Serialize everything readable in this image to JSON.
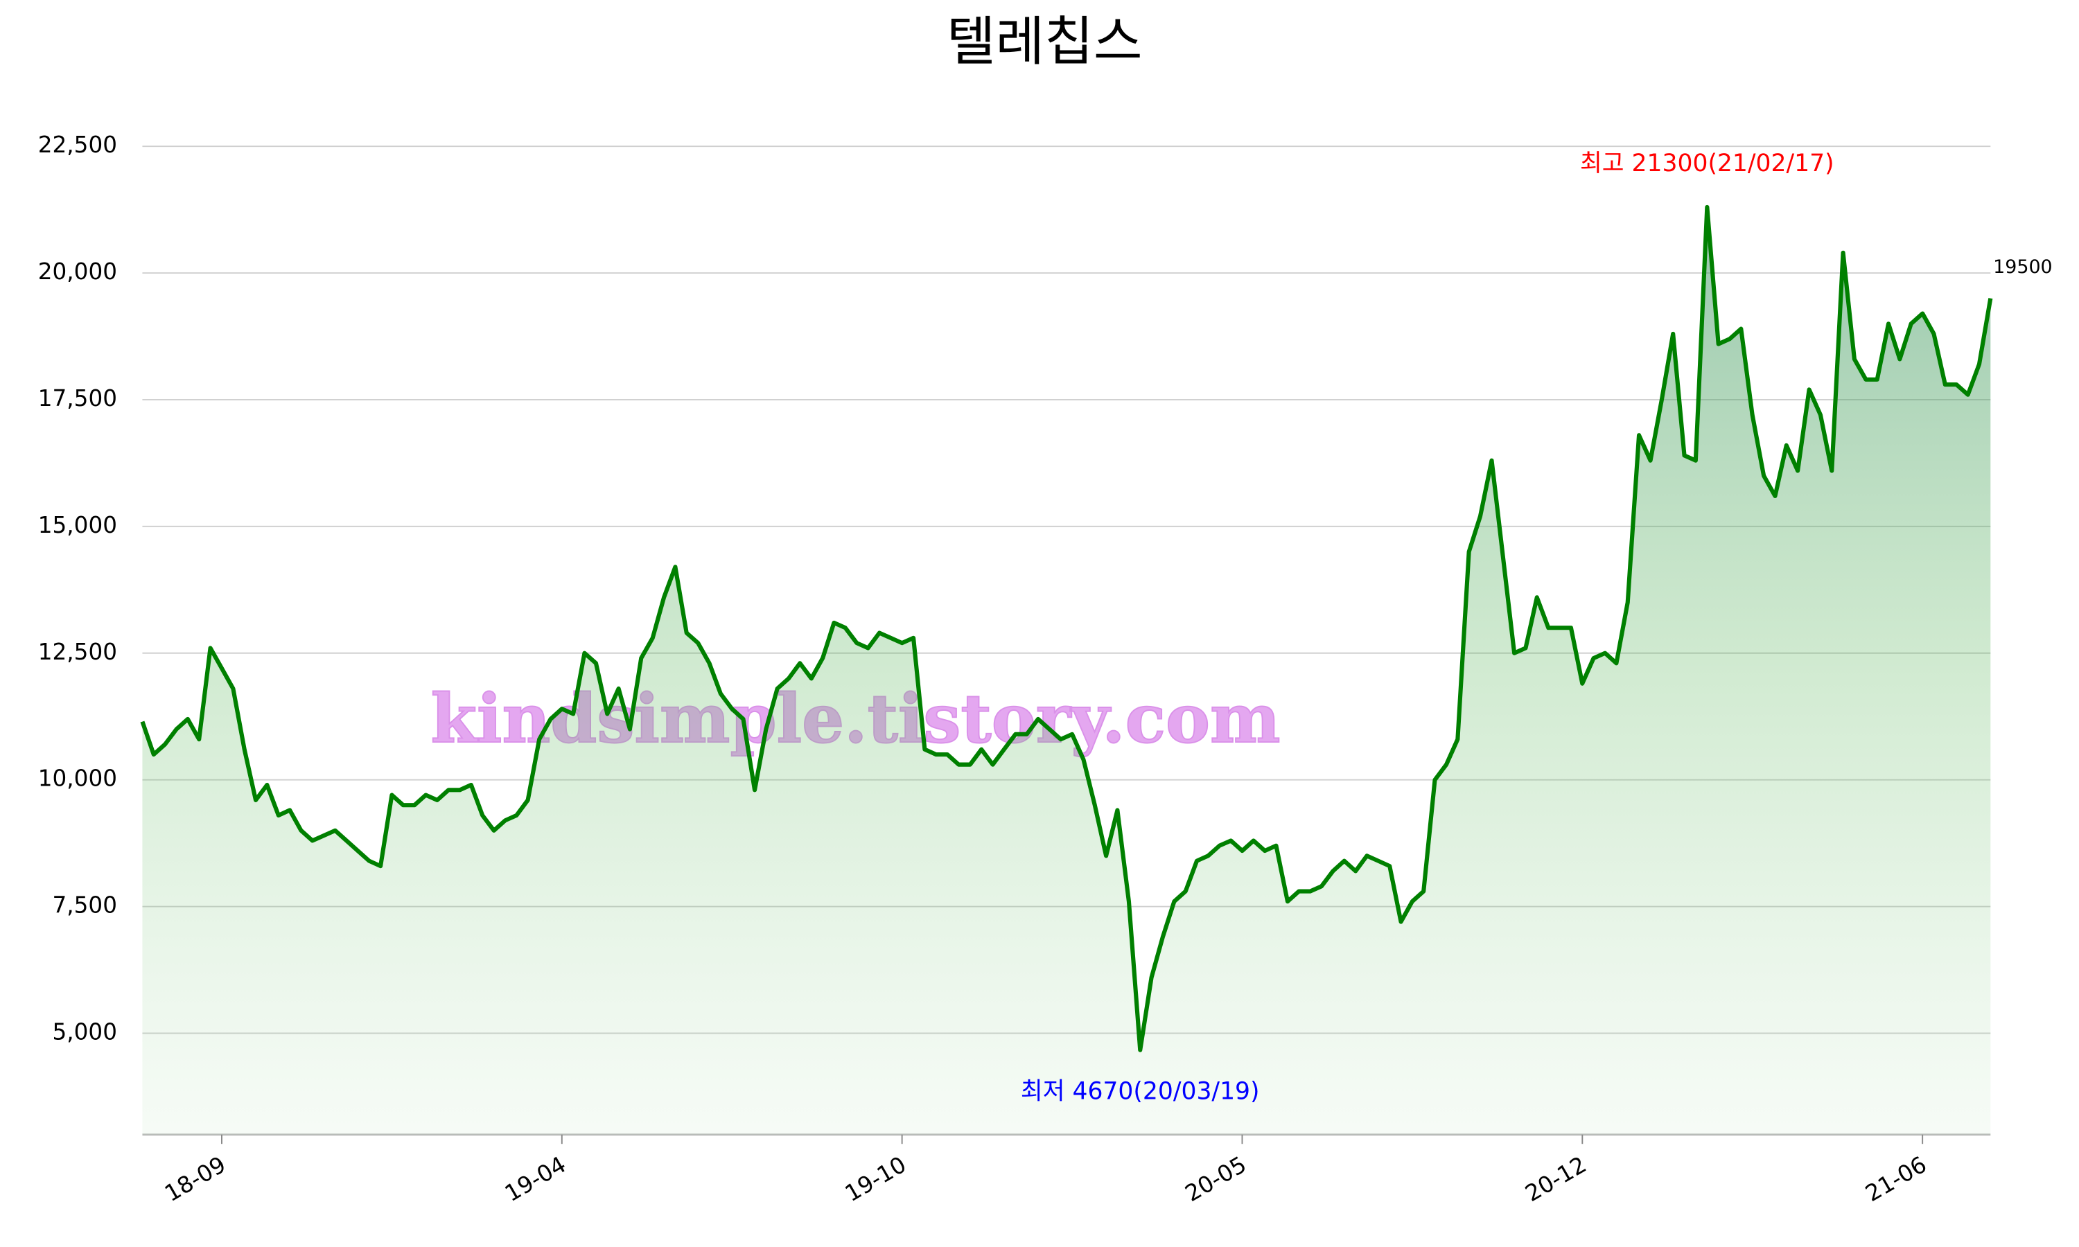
{
  "chart_data": {
    "type": "line",
    "title": "텔레칩스",
    "categories": [
      null,
      null,
      null,
      null,
      null,
      null,
      null,
      "18-09",
      null,
      null,
      null,
      null,
      null,
      null,
      null,
      null,
      null,
      null,
      null,
      null,
      null,
      null,
      null,
      null,
      null,
      null,
      null,
      null,
      null,
      null,
      null,
      null,
      null,
      null,
      null,
      null,
      null,
      "19-04",
      null,
      null,
      null,
      null,
      null,
      null,
      null,
      null,
      null,
      null,
      null,
      null,
      null,
      null,
      null,
      null,
      null,
      null,
      null,
      null,
      null,
      null,
      null,
      null,
      null,
      null,
      null,
      null,
      null,
      "19-10",
      null,
      null,
      null,
      null,
      null,
      null,
      null,
      null,
      null,
      null,
      null,
      null,
      null,
      null,
      null,
      null,
      null,
      null,
      null,
      null,
      null,
      null,
      null,
      null,
      null,
      null,
      null,
      null,
      null,
      "20-05",
      null,
      null,
      null,
      null,
      null,
      null,
      null,
      null,
      null,
      null,
      null,
      null,
      null,
      null,
      null,
      null,
      null,
      null,
      null,
      null,
      null,
      null,
      null,
      null,
      null,
      null,
      null,
      null,
      null,
      "20-12",
      null,
      null,
      null,
      null,
      null,
      null,
      null,
      null,
      null,
      null,
      null,
      null,
      null,
      null,
      null,
      null,
      null,
      null,
      null,
      null,
      null,
      null,
      null,
      null,
      null,
      null,
      null,
      null,
      null,
      "21-06",
      null,
      null,
      null,
      null,
      null,
      null
    ],
    "series": [
      {
        "name": "텔레칩스",
        "color": "#008000",
        "values": [
          11150,
          10500,
          10700,
          11000,
          11200,
          10800,
          12600,
          12200,
          11800,
          10600,
          9600,
          9900,
          9300,
          9400,
          9000,
          8800,
          8900,
          9000,
          8800,
          8600,
          8400,
          8300,
          9700,
          9500,
          9500,
          9700,
          9600,
          9800,
          9800,
          9900,
          9300,
          9000,
          9200,
          9300,
          9600,
          10800,
          11200,
          11400,
          11300,
          12500,
          12300,
          11300,
          11800,
          11000,
          12400,
          12800,
          13600,
          14200,
          12900,
          12700,
          12300,
          11700,
          11400,
          11200,
          9800,
          11000,
          11800,
          12000,
          12300,
          12000,
          12400,
          13100,
          13000,
          12700,
          12600,
          12900,
          12800,
          12700,
          12800,
          10600,
          10500,
          10500,
          10300,
          10300,
          10600,
          10300,
          10600,
          10900,
          10900,
          11200,
          11000,
          10800,
          10900,
          10400,
          9500,
          8500,
          9400,
          7600,
          4670,
          6100,
          6900,
          7600,
          7800,
          8400,
          8500,
          8700,
          8800,
          8600,
          8800,
          8600,
          8700,
          7600,
          7800,
          7800,
          7900,
          8200,
          8400,
          8200,
          8500,
          8400,
          8300,
          7200,
          7600,
          7800,
          10000,
          10300,
          10800,
          14500,
          15200,
          16300,
          14400,
          12500,
          12600,
          13600,
          13000,
          13000,
          13000,
          11900,
          12400,
          12500,
          12300,
          13500,
          16800,
          16300,
          17500,
          18800,
          16400,
          16300,
          21300,
          18600,
          18700,
          18900,
          17200,
          16000,
          15600,
          16600,
          16100,
          17700,
          17200,
          16100,
          20400,
          18300,
          17900,
          17900,
          19000,
          18300,
          19000,
          19200,
          18800,
          17800,
          17800,
          17600,
          18200,
          19500
        ]
      }
    ],
    "ylim": [
      3000,
      23000
    ],
    "yticks": [
      {
        "value": 5000,
        "label": "5,000"
      },
      {
        "value": 7500,
        "label": "7,500"
      },
      {
        "value": 10000,
        "label": "10,000"
      },
      {
        "value": 12500,
        "label": "12,500"
      },
      {
        "value": 15000,
        "label": "15,000"
      },
      {
        "value": 17500,
        "label": "17,500"
      },
      {
        "value": 20000,
        "label": "20,000"
      },
      {
        "value": 22500,
        "label": "22,500"
      }
    ],
    "grid": true,
    "annotations": [
      {
        "text": "최고 21300(21/02/17)",
        "color": "#ff0000",
        "at": "max"
      },
      {
        "text": "최저 4670(20/03/19)",
        "color": "#0000ff",
        "at": "min"
      }
    ],
    "watermark": "kindsimple.tistory.com"
  }
}
